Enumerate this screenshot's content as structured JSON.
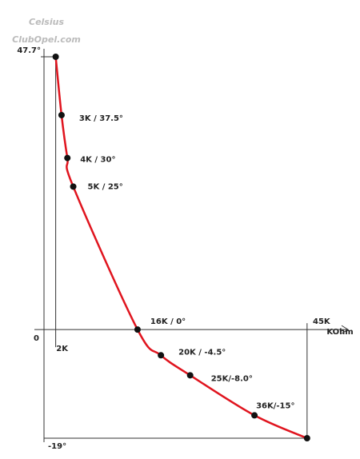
{
  "watermark": [
    "Celsius",
    "ClubOpel.com"
  ],
  "chart_data": {
    "type": "line",
    "x_label": "KOhm",
    "x": [
      2,
      3,
      4,
      5,
      16,
      20,
      25,
      36,
      45
    ],
    "values": [
      47.7,
      37.5,
      30,
      25,
      0,
      -4.5,
      -8.0,
      -15,
      -19
    ],
    "value_labels": [
      null,
      "3K / 37.5°",
      "4K / 30°",
      "5K / 25°",
      "16K / 0°",
      "20K / -4.5°",
      "25K/-8.0°",
      "36K/-15°",
      null
    ],
    "color": "#e0141e",
    "marker_color": "#111",
    "xlim": [
      0,
      52
    ],
    "ylim": [
      -19,
      47.7
    ],
    "xticks": [
      {
        "value": 2,
        "label": "2K"
      },
      {
        "value": 45,
        "label": "45K"
      }
    ],
    "yticks": [
      {
        "value": 47.7,
        "label": "47.7°"
      },
      0,
      {
        "value": -19,
        "label": "-19°"
      }
    ]
  }
}
